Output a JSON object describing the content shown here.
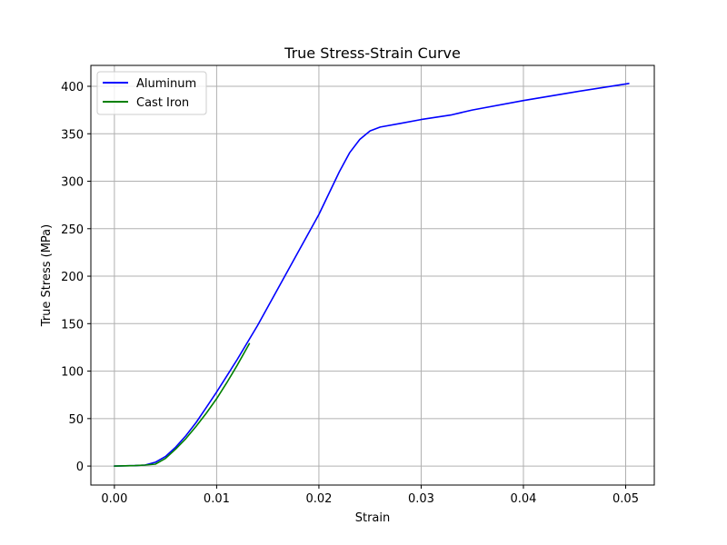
{
  "chart_data": {
    "type": "line",
    "title": "True Stress-Strain Curve",
    "xlabel": "Strain",
    "ylabel": "True Stress (MPa)",
    "xlim": [
      -0.0023,
      0.0528
    ],
    "ylim": [
      -20,
      422
    ],
    "xticks": [
      0.0,
      0.01,
      0.02,
      0.03,
      0.04,
      0.05
    ],
    "xtick_labels": [
      "0.00",
      "0.01",
      "0.02",
      "0.03",
      "0.04",
      "0.05"
    ],
    "yticks": [
      0,
      50,
      100,
      150,
      200,
      250,
      300,
      350,
      400
    ],
    "ytick_labels": [
      "0",
      "50",
      "100",
      "150",
      "200",
      "250",
      "300",
      "350",
      "400"
    ],
    "grid": true,
    "legend_position": "top-left",
    "series": [
      {
        "name": "Aluminum",
        "color": "#0000ff",
        "x": [
          0.0,
          0.002,
          0.003,
          0.004,
          0.005,
          0.006,
          0.007,
          0.008,
          0.009,
          0.01,
          0.012,
          0.014,
          0.016,
          0.018,
          0.02,
          0.022,
          0.023,
          0.024,
          0.025,
          0.026,
          0.028,
          0.03,
          0.033,
          0.035,
          0.04,
          0.045,
          0.0503
        ],
        "y": [
          0,
          0.5,
          1,
          4,
          10,
          20,
          32,
          46,
          62,
          78,
          112,
          148,
          187,
          226,
          265,
          310,
          330,
          344,
          353,
          357,
          361,
          365,
          370,
          375,
          385,
          394,
          403
        ]
      },
      {
        "name": "Cast Iron",
        "color": "#008000",
        "x": [
          0.0,
          0.002,
          0.003,
          0.004,
          0.005,
          0.006,
          0.007,
          0.008,
          0.009,
          0.01,
          0.011,
          0.012,
          0.0132
        ],
        "y": [
          0,
          0.5,
          1,
          2,
          8,
          18,
          29,
          42,
          56,
          71,
          88,
          106,
          129
        ]
      }
    ]
  }
}
